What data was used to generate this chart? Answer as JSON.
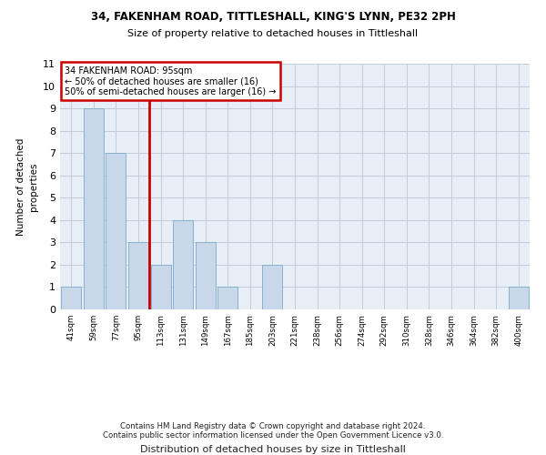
{
  "title1": "34, FAKENHAM ROAD, TITTLESHALL, KING'S LYNN, PE32 2PH",
  "title2": "Size of property relative to detached houses in Tittleshall",
  "xlabel": "Distribution of detached houses by size in Tittleshall",
  "ylabel": "Number of detached\nproperties",
  "categories": [
    "41sqm",
    "59sqm",
    "77sqm",
    "95sqm",
    "113sqm",
    "131sqm",
    "149sqm",
    "167sqm",
    "185sqm",
    "203sqm",
    "221sqm",
    "238sqm",
    "256sqm",
    "274sqm",
    "292sqm",
    "310sqm",
    "328sqm",
    "346sqm",
    "364sqm",
    "382sqm",
    "400sqm"
  ],
  "values": [
    1,
    9,
    7,
    3,
    2,
    4,
    3,
    1,
    0,
    2,
    0,
    0,
    0,
    0,
    0,
    0,
    0,
    0,
    0,
    0,
    1
  ],
  "bar_color": "#c8d8ea",
  "bar_edge_color": "#7aaac8",
  "vline_color": "#cc0000",
  "annotation_line1": "34 FAKENHAM ROAD: 95sqm",
  "annotation_line2": "← 50% of detached houses are smaller (16)",
  "annotation_line3": "50% of semi-detached houses are larger (16) →",
  "annotation_box_edgecolor": "#cc0000",
  "ylim_max": 11,
  "yticks": [
    0,
    1,
    2,
    3,
    4,
    5,
    6,
    7,
    8,
    9,
    10,
    11
  ],
  "background_color": "#e8eef5",
  "grid_color": "#c0ccd8",
  "footer1": "Contains HM Land Registry data © Crown copyright and database right 2024.",
  "footer2": "Contains public sector information licensed under the Open Government Licence v3.0."
}
